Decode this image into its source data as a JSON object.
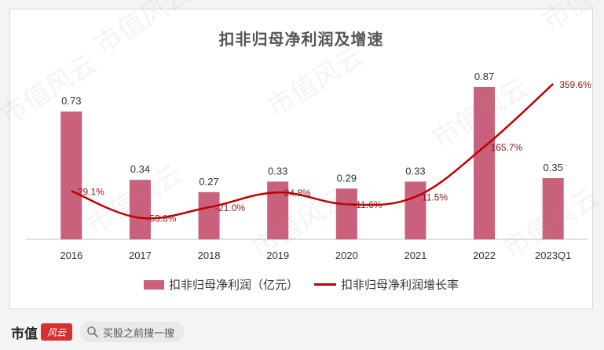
{
  "chart_data": {
    "type": "bar",
    "title": "扣非归母净利润及增速",
    "categories": [
      "2016",
      "2017",
      "2018",
      "2019",
      "2020",
      "2021",
      "2022",
      "2023Q1"
    ],
    "series": [
      {
        "name": "扣非归母净利润（亿元）",
        "kind": "bar",
        "values": [
          0.73,
          0.34,
          0.27,
          0.33,
          0.29,
          0.33,
          0.87,
          0.35
        ],
        "labels": [
          "0.73",
          "0.34",
          "0.27",
          "0.33",
          "0.29",
          "0.33",
          "0.87",
          "0.35"
        ],
        "color": "#c9617d"
      },
      {
        "name": "扣非归母净利润增长率",
        "kind": "line",
        "values": [
          29.1,
          -53.8,
          -21.0,
          24.8,
          -11.6,
          11.5,
          165.7,
          359.6
        ],
        "labels": [
          "29.1%",
          "-53.8%",
          "-21.0%",
          "24.8%",
          "-11.6%",
          "11.5%",
          "165.7%",
          "359.6%"
        ],
        "color": "#c00000"
      }
    ],
    "bar_axis_range": [
      0,
      1.0
    ],
    "line_axis_range": [
      -120,
      420
    ],
    "grid": false,
    "legend_position": "bottom"
  },
  "footer": {
    "brand": "市值",
    "brand_badge": "风云",
    "search_placeholder": "买股之前搜一搜"
  },
  "watermark": "市值风云",
  "colors": {
    "bar": "#c9617d",
    "line": "#c00000",
    "line_label": "#8b1a1a"
  }
}
